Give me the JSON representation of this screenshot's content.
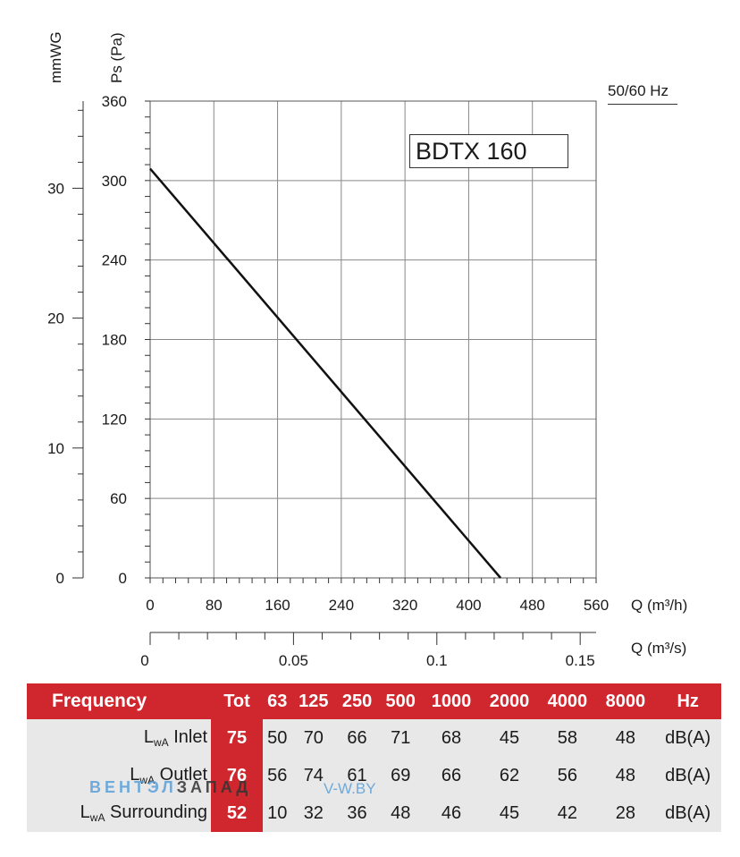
{
  "chart_data": {
    "type": "line",
    "model": "BDTX 160",
    "frequency_note": "50/60 Hz",
    "y_left_label": "mmWG",
    "y_right_label": "Ps (Pa)",
    "x_label": "Q (m³/h)",
    "x2_label": "Q (m³/s)",
    "ylim": [
      0,
      360
    ],
    "xlim": [
      0,
      560
    ],
    "y_ticks": [
      0,
      60,
      120,
      180,
      240,
      300,
      360
    ],
    "x_ticks": [
      0,
      80,
      160,
      240,
      320,
      400,
      480,
      560
    ],
    "mmwg_ticks": [
      0,
      10,
      20,
      30
    ],
    "m3s_ticks": [
      "0",
      "0.05",
      "0.1",
      "0.15"
    ],
    "m3s_values": [
      0,
      0.05,
      0.1,
      0.15
    ],
    "grid": true,
    "series": [
      {
        "x": [
          0,
          440
        ],
        "y": [
          309,
          0
        ]
      }
    ]
  },
  "table": {
    "header": [
      "Frequency",
      "Tot",
      "63",
      "125",
      "250",
      "500",
      "1000",
      "2000",
      "4000",
      "8000",
      "Hz"
    ],
    "rows": [
      {
        "label_main": "L",
        "label_sub": "wA",
        "label_rest": " Inlet",
        "values": [
          "75",
          "50",
          "70",
          "66",
          "71",
          "68",
          "45",
          "58",
          "48",
          "dB(A)"
        ]
      },
      {
        "label_main": "L",
        "label_sub": "wA",
        "label_rest": " Outlet",
        "values": [
          "76",
          "56",
          "74",
          "61",
          "69",
          "66",
          "62",
          "56",
          "48",
          "dB(A)"
        ]
      },
      {
        "label_main": "L",
        "label_sub": "wA",
        "label_rest": " Surrounding",
        "values": [
          "52",
          "10",
          "32",
          "36",
          "48",
          "46",
          "45",
          "42",
          "28",
          "dB(A)"
        ]
      }
    ]
  },
  "watermark": {
    "part1": "ВЕНТЭЛ",
    "part2": "ЗАПАД",
    "site": "V-W.BY"
  }
}
